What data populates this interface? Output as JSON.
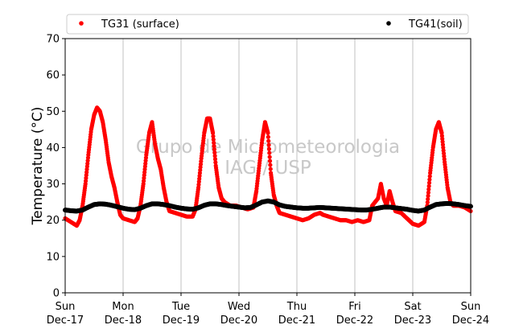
{
  "chart_data": {
    "type": "scatter",
    "xlabel": "",
    "ylabel": "Temperature (°C)",
    "ylim": [
      0,
      70
    ],
    "yticks": [
      0,
      10,
      20,
      30,
      40,
      50,
      60,
      70
    ],
    "xlim": [
      0,
      7
    ],
    "x_unit": "days",
    "xtick_labels": [
      {
        "x": 0,
        "day": "Sun",
        "date": "Dec-17"
      },
      {
        "x": 1,
        "day": "Mon",
        "date": "Dec-18"
      },
      {
        "x": 2,
        "day": "Tue",
        "date": "Dec-19"
      },
      {
        "x": 3,
        "day": "Wed",
        "date": "Dec-20"
      },
      {
        "x": 4,
        "day": "Thu",
        "date": "Dec-21"
      },
      {
        "x": 5,
        "day": "Fri",
        "date": "Dec-22"
      },
      {
        "x": 6,
        "day": "Sat",
        "date": "Dec-23"
      },
      {
        "x": 7,
        "day": "Sun",
        "date": "Dec-24"
      }
    ],
    "grid": "vertical",
    "legend_position": "top",
    "watermark": [
      "Grupo de Micrometeorologia",
      "IAG / USP"
    ],
    "series": [
      {
        "name": "TG31 (surface)",
        "color": "#ff0000",
        "points": [
          [
            0.0,
            20.5
          ],
          [
            0.1,
            19.5
          ],
          [
            0.2,
            18.5
          ],
          [
            0.25,
            20
          ],
          [
            0.3,
            24
          ],
          [
            0.35,
            30
          ],
          [
            0.4,
            38
          ],
          [
            0.45,
            45
          ],
          [
            0.5,
            49
          ],
          [
            0.55,
            51
          ],
          [
            0.6,
            50
          ],
          [
            0.65,
            47
          ],
          [
            0.7,
            42
          ],
          [
            0.75,
            36
          ],
          [
            0.8,
            32
          ],
          [
            0.85,
            29
          ],
          [
            0.9,
            25
          ],
          [
            0.95,
            21.5
          ],
          [
            1.0,
            20.5
          ],
          [
            1.1,
            20
          ],
          [
            1.2,
            19.5
          ],
          [
            1.25,
            20.5
          ],
          [
            1.3,
            24
          ],
          [
            1.35,
            30
          ],
          [
            1.4,
            38
          ],
          [
            1.45,
            44
          ],
          [
            1.5,
            47
          ],
          [
            1.55,
            41
          ],
          [
            1.6,
            37
          ],
          [
            1.65,
            34
          ],
          [
            1.7,
            29
          ],
          [
            1.75,
            25
          ],
          [
            1.8,
            22.5
          ],
          [
            1.9,
            22
          ],
          [
            2.0,
            21.5
          ],
          [
            2.1,
            21
          ],
          [
            2.2,
            21
          ],
          [
            2.25,
            23
          ],
          [
            2.3,
            29
          ],
          [
            2.35,
            37
          ],
          [
            2.4,
            44
          ],
          [
            2.45,
            48
          ],
          [
            2.5,
            48
          ],
          [
            2.55,
            44
          ],
          [
            2.6,
            35
          ],
          [
            2.65,
            29
          ],
          [
            2.7,
            26
          ],
          [
            2.75,
            25
          ],
          [
            2.85,
            24
          ],
          [
            2.95,
            24
          ],
          [
            3.05,
            23.5
          ],
          [
            3.15,
            23
          ],
          [
            3.25,
            23.5
          ],
          [
            3.3,
            28
          ],
          [
            3.35,
            35
          ],
          [
            3.4,
            42
          ],
          [
            3.45,
            47
          ],
          [
            3.5,
            44
          ],
          [
            3.55,
            33
          ],
          [
            3.6,
            27
          ],
          [
            3.65,
            24
          ],
          [
            3.7,
            22
          ],
          [
            3.8,
            21.5
          ],
          [
            3.9,
            21
          ],
          [
            4.0,
            20.5
          ],
          [
            4.1,
            20
          ],
          [
            4.2,
            20.5
          ],
          [
            4.3,
            21.5
          ],
          [
            4.4,
            22
          ],
          [
            4.45,
            21.5
          ],
          [
            4.55,
            21
          ],
          [
            4.65,
            20.5
          ],
          [
            4.75,
            20
          ],
          [
            4.85,
            20
          ],
          [
            4.95,
            19.5
          ],
          [
            5.05,
            20
          ],
          [
            5.15,
            19.5
          ],
          [
            5.25,
            20
          ],
          [
            5.3,
            24
          ],
          [
            5.4,
            26
          ],
          [
            5.45,
            30
          ],
          [
            5.5,
            26
          ],
          [
            5.55,
            24
          ],
          [
            5.6,
            28
          ],
          [
            5.65,
            25
          ],
          [
            5.7,
            22.5
          ],
          [
            5.8,
            22
          ],
          [
            5.9,
            20.5
          ],
          [
            6.0,
            19
          ],
          [
            6.1,
            18.5
          ],
          [
            6.2,
            19.5
          ],
          [
            6.25,
            24
          ],
          [
            6.3,
            33
          ],
          [
            6.35,
            40
          ],
          [
            6.4,
            45
          ],
          [
            6.45,
            47
          ],
          [
            6.5,
            44
          ],
          [
            6.55,
            36
          ],
          [
            6.6,
            29
          ],
          [
            6.65,
            25
          ],
          [
            6.7,
            24
          ],
          [
            6.8,
            24
          ],
          [
            6.9,
            23.5
          ],
          [
            7.0,
            22.5
          ]
        ]
      },
      {
        "name": "TG41(soil)",
        "color": "#000000",
        "points": [
          [
            0.0,
            22.8
          ],
          [
            0.1,
            22.6
          ],
          [
            0.2,
            22.5
          ],
          [
            0.3,
            22.8
          ],
          [
            0.4,
            23.6
          ],
          [
            0.5,
            24.3
          ],
          [
            0.6,
            24.5
          ],
          [
            0.7,
            24.4
          ],
          [
            0.8,
            24.1
          ],
          [
            0.9,
            23.7
          ],
          [
            1.0,
            23.3
          ],
          [
            1.1,
            23.0
          ],
          [
            1.2,
            22.9
          ],
          [
            1.3,
            23.3
          ],
          [
            1.4,
            24.0
          ],
          [
            1.5,
            24.5
          ],
          [
            1.6,
            24.5
          ],
          [
            1.7,
            24.3
          ],
          [
            1.8,
            24.0
          ],
          [
            1.9,
            23.6
          ],
          [
            2.0,
            23.3
          ],
          [
            2.1,
            23.1
          ],
          [
            2.2,
            23.0
          ],
          [
            2.3,
            23.4
          ],
          [
            2.4,
            24.1
          ],
          [
            2.5,
            24.5
          ],
          [
            2.6,
            24.5
          ],
          [
            2.7,
            24.3
          ],
          [
            2.8,
            24.0
          ],
          [
            2.9,
            23.8
          ],
          [
            3.0,
            23.6
          ],
          [
            3.1,
            23.4
          ],
          [
            3.2,
            23.5
          ],
          [
            3.3,
            24.2
          ],
          [
            3.4,
            25.0
          ],
          [
            3.5,
            25.3
          ],
          [
            3.6,
            25.0
          ],
          [
            3.7,
            24.2
          ],
          [
            3.8,
            23.8
          ],
          [
            3.9,
            23.6
          ],
          [
            4.0,
            23.4
          ],
          [
            4.1,
            23.3
          ],
          [
            4.2,
            23.3
          ],
          [
            4.3,
            23.4
          ],
          [
            4.4,
            23.5
          ],
          [
            4.5,
            23.4
          ],
          [
            4.6,
            23.3
          ],
          [
            4.7,
            23.2
          ],
          [
            4.8,
            23.1
          ],
          [
            4.9,
            23.0
          ],
          [
            5.0,
            22.9
          ],
          [
            5.1,
            22.8
          ],
          [
            5.2,
            22.8
          ],
          [
            5.3,
            23.0
          ],
          [
            5.4,
            23.3
          ],
          [
            5.5,
            23.6
          ],
          [
            5.6,
            23.6
          ],
          [
            5.7,
            23.4
          ],
          [
            5.8,
            23.2
          ],
          [
            5.9,
            23.0
          ],
          [
            6.0,
            22.7
          ],
          [
            6.1,
            22.5
          ],
          [
            6.2,
            22.8
          ],
          [
            6.3,
            23.6
          ],
          [
            6.4,
            24.3
          ],
          [
            6.5,
            24.5
          ],
          [
            6.6,
            24.6
          ],
          [
            6.7,
            24.5
          ],
          [
            6.8,
            24.3
          ],
          [
            6.9,
            24.0
          ],
          [
            7.0,
            23.8
          ]
        ]
      }
    ]
  }
}
